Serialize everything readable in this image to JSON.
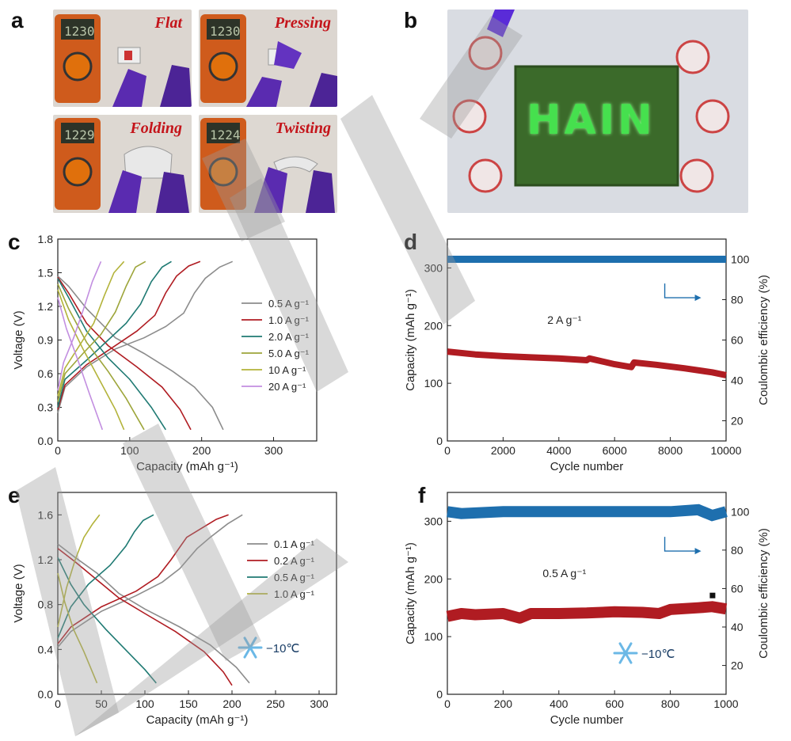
{
  "panel_labels": {
    "a": "a",
    "b": "b",
    "c": "c",
    "d": "d",
    "e": "e",
    "f": "f"
  },
  "photos_a": [
    {
      "caption": "Flat",
      "reading": "1230"
    },
    {
      "caption": "Pressing",
      "reading": "1230"
    },
    {
      "caption": "Folding",
      "reading": "1229"
    },
    {
      "caption": "Twisting",
      "reading": "1224"
    }
  ],
  "photo_b": {
    "board_text": "HAIN",
    "led_colors": [
      "#3ce24a",
      "#3ce24a",
      "#2456e8",
      "#3ce24a",
      "#2456e8"
    ]
  },
  "colors": {
    "gray": "#8c8c8c",
    "red": "#b01c22",
    "teal": "#1f7a73",
    "olive": "#9da53a",
    "yellowgreen": "#b3b33a",
    "violet": "#c28ee0",
    "blue": "#1e6fae"
  },
  "chart_data": [
    {
      "id": "c",
      "type": "line",
      "xlabel": "Capacity (mAh g⁻¹)",
      "ylabel": "Voltage (V)",
      "xlim": [
        0,
        360
      ],
      "ylim": [
        0,
        1.8
      ],
      "xticks": [
        0,
        100,
        200,
        300
      ],
      "yticks": [
        0.0,
        0.3,
        0.6,
        0.9,
        1.2,
        1.5,
        1.8
      ],
      "series": [
        {
          "name": "0.5 A g⁻¹",
          "color": "#8c8c8c",
          "charge": [
            [
              0,
              0.25
            ],
            [
              10,
              0.48
            ],
            [
              40,
              0.66
            ],
            [
              80,
              0.82
            ],
            [
              120,
              0.92
            ],
            [
              150,
              1.02
            ],
            [
              175,
              1.14
            ],
            [
              190,
              1.32
            ],
            [
              205,
              1.45
            ],
            [
              225,
              1.55
            ],
            [
              243,
              1.6
            ]
          ],
          "discharge": [
            [
              0,
              1.47
            ],
            [
              15,
              1.38
            ],
            [
              40,
              1.18
            ],
            [
              80,
              0.92
            ],
            [
              120,
              0.78
            ],
            [
              160,
              0.62
            ],
            [
              190,
              0.48
            ],
            [
              215,
              0.3
            ],
            [
              230,
              0.1
            ]
          ]
        },
        {
          "name": "1.0 A g⁻¹",
          "color": "#b01c22",
          "charge": [
            [
              0,
              0.28
            ],
            [
              10,
              0.5
            ],
            [
              40,
              0.68
            ],
            [
              80,
              0.85
            ],
            [
              110,
              0.98
            ],
            [
              135,
              1.12
            ],
            [
              150,
              1.32
            ],
            [
              165,
              1.47
            ],
            [
              182,
              1.56
            ],
            [
              198,
              1.6
            ]
          ],
          "discharge": [
            [
              0,
              1.46
            ],
            [
              15,
              1.32
            ],
            [
              40,
              1.05
            ],
            [
              70,
              0.85
            ],
            [
              110,
              0.66
            ],
            [
              145,
              0.48
            ],
            [
              170,
              0.28
            ],
            [
              185,
              0.1
            ]
          ]
        },
        {
          "name": "2.0 A g⁻¹",
          "color": "#1f7a73",
          "charge": [
            [
              0,
              0.3
            ],
            [
              10,
              0.55
            ],
            [
              40,
              0.72
            ],
            [
              70,
              0.9
            ],
            [
              95,
              1.05
            ],
            [
              115,
              1.22
            ],
            [
              130,
              1.42
            ],
            [
              145,
              1.55
            ],
            [
              158,
              1.6
            ]
          ],
          "discharge": [
            [
              0,
              1.45
            ],
            [
              15,
              1.28
            ],
            [
              40,
              0.98
            ],
            [
              70,
              0.74
            ],
            [
              100,
              0.55
            ],
            [
              130,
              0.3
            ],
            [
              150,
              0.1
            ]
          ]
        },
        {
          "name": "5.0 A g⁻¹",
          "color": "#9da53a",
          "charge": [
            [
              0,
              0.35
            ],
            [
              10,
              0.6
            ],
            [
              35,
              0.78
            ],
            [
              60,
              0.95
            ],
            [
              80,
              1.15
            ],
            [
              95,
              1.38
            ],
            [
              108,
              1.55
            ],
            [
              122,
              1.6
            ]
          ],
          "discharge": [
            [
              0,
              1.4
            ],
            [
              15,
              1.18
            ],
            [
              40,
              0.88
            ],
            [
              70,
              0.62
            ],
            [
              95,
              0.38
            ],
            [
              120,
              0.1
            ]
          ]
        },
        {
          "name": "10 A g⁻¹",
          "color": "#b3b33a",
          "charge": [
            [
              0,
              0.4
            ],
            [
              10,
              0.65
            ],
            [
              30,
              0.85
            ],
            [
              50,
              1.05
            ],
            [
              65,
              1.3
            ],
            [
              78,
              1.5
            ],
            [
              92,
              1.6
            ]
          ],
          "discharge": [
            [
              0,
              1.35
            ],
            [
              15,
              1.08
            ],
            [
              35,
              0.82
            ],
            [
              60,
              0.52
            ],
            [
              80,
              0.28
            ],
            [
              92,
              0.1
            ]
          ]
        },
        {
          "name": "20 A g⁻¹",
          "color": "#c28ee0",
          "charge": [
            [
              0,
              0.45
            ],
            [
              8,
              0.7
            ],
            [
              22,
              0.92
            ],
            [
              36,
              1.18
            ],
            [
              48,
              1.42
            ],
            [
              60,
              1.6
            ]
          ],
          "discharge": [
            [
              0,
              1.28
            ],
            [
              12,
              1.0
            ],
            [
              28,
              0.72
            ],
            [
              44,
              0.42
            ],
            [
              62,
              0.1
            ]
          ]
        }
      ]
    },
    {
      "id": "d",
      "type": "scatter",
      "xlabel": "Cycle number",
      "ylabel": "Capacity (mAh g⁻¹)",
      "y2label": "Coulombic efficiency (%)",
      "annotation": "2 A g⁻¹",
      "xlim": [
        0,
        10000
      ],
      "ylim": [
        0,
        350
      ],
      "y2lim": [
        10,
        110
      ],
      "xticks": [
        0,
        2000,
        4000,
        6000,
        8000,
        10000
      ],
      "yticks": [
        0,
        100,
        200,
        300
      ],
      "y2ticks": [
        20,
        40,
        60,
        80,
        100
      ],
      "capacity": [
        [
          0,
          155
        ],
        [
          1000,
          150
        ],
        [
          2000,
          147
        ],
        [
          3000,
          145
        ],
        [
          4000,
          143
        ],
        [
          5000,
          140
        ],
        [
          5100,
          143
        ],
        [
          6000,
          133
        ],
        [
          6600,
          128
        ],
        [
          6700,
          136
        ],
        [
          7500,
          132
        ],
        [
          8500,
          126
        ],
        [
          9500,
          119
        ],
        [
          10000,
          114
        ]
      ],
      "ce": [
        [
          0,
          100
        ],
        [
          10000,
          100
        ]
      ]
    },
    {
      "id": "e",
      "type": "line",
      "xlabel": "Capacity (mAh g⁻¹)",
      "ylabel": "Voltage (V)",
      "xlim": [
        0,
        320
      ],
      "ylim": [
        0,
        1.8
      ],
      "xticks": [
        0,
        50,
        100,
        150,
        200,
        250,
        300
      ],
      "yticks": [
        0.0,
        0.4,
        0.8,
        1.2,
        1.6
      ],
      "snow_label": "−10℃",
      "series": [
        {
          "name": "0.1 A g⁻¹",
          "color": "#8c8c8c",
          "charge": [
            [
              0,
              0.42
            ],
            [
              15,
              0.56
            ],
            [
              50,
              0.74
            ],
            [
              90,
              0.88
            ],
            [
              120,
              1.0
            ],
            [
              140,
              1.12
            ],
            [
              160,
              1.3
            ],
            [
              175,
              1.4
            ],
            [
              195,
              1.52
            ],
            [
              212,
              1.6
            ]
          ],
          "discharge": [
            [
              0,
              1.34
            ],
            [
              20,
              1.22
            ],
            [
              45,
              1.08
            ],
            [
              70,
              0.9
            ],
            [
              100,
              0.76
            ],
            [
              140,
              0.6
            ],
            [
              175,
              0.44
            ],
            [
              205,
              0.24
            ],
            [
              220,
              0.1
            ]
          ]
        },
        {
          "name": "0.2 A g⁻¹",
          "color": "#b01c22",
          "charge": [
            [
              0,
              0.45
            ],
            [
              15,
              0.6
            ],
            [
              50,
              0.78
            ],
            [
              90,
              0.92
            ],
            [
              115,
              1.05
            ],
            [
              130,
              1.2
            ],
            [
              148,
              1.4
            ],
            [
              165,
              1.48
            ],
            [
              182,
              1.56
            ],
            [
              196,
              1.6
            ]
          ],
          "discharge": [
            [
              0,
              1.3
            ],
            [
              20,
              1.18
            ],
            [
              45,
              1.02
            ],
            [
              70,
              0.86
            ],
            [
              100,
              0.72
            ],
            [
              135,
              0.56
            ],
            [
              168,
              0.38
            ],
            [
              190,
              0.2
            ],
            [
              200,
              0.08
            ]
          ]
        },
        {
          "name": "0.5 A g⁻¹",
          "color": "#1f7a73",
          "charge": [
            [
              0,
              0.5
            ],
            [
              15,
              0.78
            ],
            [
              35,
              0.98
            ],
            [
              60,
              1.15
            ],
            [
              78,
              1.32
            ],
            [
              88,
              1.45
            ],
            [
              98,
              1.55
            ],
            [
              110,
              1.6
            ]
          ],
          "discharge": [
            [
              0,
              1.22
            ],
            [
              15,
              0.98
            ],
            [
              30,
              0.8
            ],
            [
              55,
              0.58
            ],
            [
              80,
              0.38
            ],
            [
              100,
              0.22
            ],
            [
              113,
              0.1
            ]
          ]
        },
        {
          "name": "1.0 A g⁻¹",
          "color": "#b3b33a",
          "charge": [
            [
              0,
              0.6
            ],
            [
              10,
              0.95
            ],
            [
              20,
              1.2
            ],
            [
              30,
              1.4
            ],
            [
              40,
              1.52
            ],
            [
              48,
              1.6
            ]
          ],
          "discharge": [
            [
              0,
              1.08
            ],
            [
              8,
              0.82
            ],
            [
              18,
              0.58
            ],
            [
              30,
              0.38
            ],
            [
              45,
              0.1
            ]
          ]
        }
      ]
    },
    {
      "id": "f",
      "type": "scatter",
      "xlabel": "Cycle number",
      "ylabel": "Capacity (mAh g⁻¹)",
      "y2label": "Coulombic efficiency (%)",
      "annotation": "0.5 A g⁻¹",
      "snow_label": "−10℃",
      "xlim": [
        0,
        1000
      ],
      "ylim": [
        0,
        350
      ],
      "y2lim": [
        5,
        110
      ],
      "xticks": [
        0,
        200,
        400,
        600,
        800,
        1000
      ],
      "yticks": [
        0,
        100,
        200,
        300
      ],
      "y2ticks": [
        20,
        40,
        60,
        80,
        100
      ],
      "capacity": [
        [
          0,
          135
        ],
        [
          50,
          140
        ],
        [
          100,
          138
        ],
        [
          200,
          140
        ],
        [
          260,
          132
        ],
        [
          300,
          140
        ],
        [
          400,
          140
        ],
        [
          500,
          141
        ],
        [
          600,
          143
        ],
        [
          700,
          142
        ],
        [
          760,
          140
        ],
        [
          800,
          147
        ],
        [
          900,
          150
        ],
        [
          950,
          152
        ],
        [
          1000,
          148
        ]
      ],
      "ce": [
        [
          0,
          100
        ],
        [
          50,
          99
        ],
        [
          200,
          100
        ],
        [
          400,
          100
        ],
        [
          600,
          100
        ],
        [
          800,
          100
        ],
        [
          900,
          101
        ],
        [
          950,
          98
        ],
        [
          1000,
          100
        ]
      ]
    }
  ]
}
